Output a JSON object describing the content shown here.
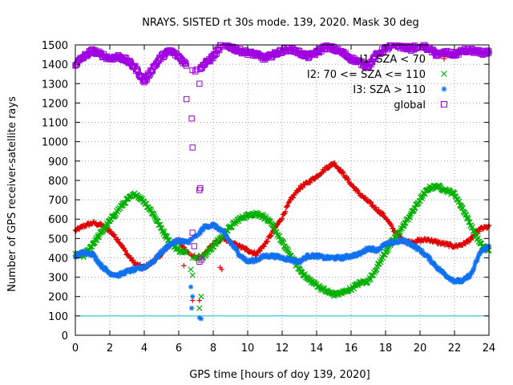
{
  "chart_data": {
    "type": "scatter",
    "title": "NRAYS. SISTED rt 30s mode. 139, 2020. Mask 30 deg",
    "xlabel": "GPS time [hours of doy 139, 2020]",
    "ylabel": "Number of GPS receiver-satellite rays",
    "xlim": [
      0,
      24
    ],
    "ylim": [
      0,
      1500
    ],
    "xticks": [
      "0",
      "2",
      "4",
      "6",
      "8",
      "10",
      "12",
      "14",
      "16",
      "18",
      "20",
      "22",
      "24"
    ],
    "yticks": [
      "0",
      "100",
      "200",
      "300",
      "400",
      "500",
      "600",
      "700",
      "800",
      "900",
      "1000",
      "1100",
      "1200",
      "1300",
      "1400",
      "1500"
    ],
    "grid": true,
    "legend_position": "top-right",
    "reference_line": {
      "y": 100,
      "color": "#00c0d0"
    },
    "series": [
      {
        "name": "I1: SZA < 70",
        "legend_label": "I1: SZA < 70",
        "marker": "+",
        "color": "#e00000",
        "x": [
          0,
          0.5,
          1,
          1.5,
          2,
          2.5,
          3,
          3.5,
          4,
          4.5,
          5,
          5.5,
          6,
          6.5,
          7,
          7.5,
          8,
          8.5,
          9,
          9.5,
          10,
          10.5,
          11,
          11.5,
          12,
          12.5,
          13,
          13.5,
          14,
          14.5,
          15,
          15.5,
          16,
          16.5,
          17,
          17.5,
          18,
          18.5,
          19,
          19.5,
          20,
          20.5,
          21,
          21.5,
          22,
          22.5,
          23,
          23.5,
          24
        ],
        "y": [
          540,
          565,
          580,
          570,
          540,
          490,
          420,
          365,
          350,
          380,
          420,
          470,
          490,
          430,
          400,
          420,
          470,
          500,
          480,
          460,
          440,
          420,
          470,
          540,
          610,
          700,
          760,
          790,
          820,
          860,
          890,
          840,
          780,
          730,
          690,
          650,
          610,
          540,
          490,
          480,
          490,
          495,
          480,
          470,
          460,
          470,
          500,
          550,
          560
        ]
      },
      {
        "name": "I2: 70 <= SZA <= 110",
        "legend_label": "I2: 70 <= SZA <= 110",
        "marker": "x",
        "color": "#00b000",
        "x": [
          0,
          0.5,
          1,
          1.5,
          2,
          2.5,
          3,
          3.5,
          4,
          4.5,
          5,
          5.5,
          6,
          6.5,
          7,
          7.5,
          8,
          8.5,
          9,
          9.5,
          10,
          10.5,
          11,
          11.5,
          12,
          12.5,
          13,
          13.5,
          14,
          14.5,
          15,
          15.5,
          16,
          16.5,
          17,
          17.5,
          18,
          18.5,
          19,
          19.5,
          20,
          20.5,
          21,
          21.5,
          22,
          22.5,
          23,
          23.5,
          24
        ],
        "y": [
          420,
          410,
          470,
          530,
          590,
          650,
          700,
          730,
          690,
          630,
          550,
          480,
          440,
          420,
          400,
          410,
          460,
          510,
          560,
          600,
          620,
          630,
          610,
          560,
          480,
          410,
          340,
          290,
          260,
          230,
          210,
          220,
          240,
          270,
          280,
          350,
          430,
          500,
          560,
          630,
          700,
          760,
          770,
          750,
          730,
          650,
          560,
          470,
          440
        ]
      },
      {
        "name": "I3: SZA > 110",
        "legend_label": "I3: SZA > 110",
        "marker": "*",
        "color": "#1070f0",
        "x": [
          0,
          0.5,
          1,
          1.5,
          2,
          2.5,
          3,
          3.5,
          4,
          4.5,
          5,
          5.5,
          6,
          6.5,
          7,
          7.5,
          8,
          8.5,
          9,
          9.5,
          10,
          10.5,
          11,
          11.5,
          12,
          12.5,
          13,
          13.5,
          14,
          14.5,
          15,
          15.5,
          16,
          16.5,
          17,
          17.5,
          18,
          18.5,
          19,
          19.5,
          20,
          20.5,
          21,
          21.5,
          22,
          22.5,
          23,
          23.5,
          24
        ],
        "y": [
          410,
          430,
          420,
          360,
          320,
          310,
          330,
          340,
          350,
          380,
          430,
          470,
          490,
          480,
          510,
          560,
          570,
          540,
          480,
          420,
          380,
          390,
          410,
          410,
          400,
          390,
          380,
          410,
          410,
          400,
          400,
          400,
          410,
          420,
          450,
          440,
          470,
          480,
          490,
          470,
          440,
          400,
          350,
          310,
          280,
          280,
          320,
          430,
          460
        ]
      },
      {
        "name": "global",
        "legend_label": "global",
        "marker": "square",
        "color": "#a000e0",
        "x": [
          0,
          0.5,
          1,
          1.5,
          2,
          2.5,
          3,
          3.5,
          4,
          4.5,
          5,
          5.5,
          6,
          6.5,
          7,
          7.5,
          8,
          8.5,
          9,
          9.5,
          10,
          10.5,
          11,
          11.5,
          12,
          12.5,
          13,
          13.5,
          14,
          14.5,
          15,
          15.5,
          16,
          16.5,
          17,
          17.5,
          18,
          18.5,
          19,
          19.5,
          20,
          20.5,
          21,
          21.5,
          22,
          22.5,
          23,
          23.5,
          24
        ],
        "y": [
          1400,
          1440,
          1470,
          1450,
          1430,
          1440,
          1420,
          1380,
          1310,
          1380,
          1440,
          1470,
          1440,
          1390,
          1370,
          1400,
          1440,
          1500,
          1490,
          1470,
          1460,
          1450,
          1430,
          1450,
          1470,
          1480,
          1460,
          1440,
          1460,
          1490,
          1480,
          1460,
          1430,
          1410,
          1390,
          1450,
          1480,
          1500,
          1490,
          1480,
          1500,
          1480,
          1450,
          1460,
          1450,
          1470,
          1470,
          1460,
          1460
        ]
      }
    ],
    "outliers": [
      {
        "series": "global",
        "x": [
          6.45,
          6.75,
          6.8,
          7.2,
          7.25,
          7.2
        ],
        "y": [
          1220,
          1120,
          970,
          1300,
          760,
          750
        ]
      },
      {
        "series": "global",
        "x": [
          6.8,
          6.9,
          7.2,
          7.3
        ],
        "y": [
          530,
          460,
          380,
          390
        ]
      },
      {
        "series": "I1: SZA < 70",
        "x": [
          6.3,
          6.8,
          7.2,
          8.4,
          8.5
        ],
        "y": [
          360,
          180,
          180,
          350,
          340
        ]
      },
      {
        "series": "I2: 70 <= SZA <= 110",
        "x": [
          6.7,
          6.8,
          7.3,
          7.2
        ],
        "y": [
          340,
          310,
          200,
          140
        ]
      },
      {
        "series": "I3: SZA > 110",
        "x": [
          6.7,
          6.8,
          6.75,
          7.2,
          7.3
        ],
        "y": [
          250,
          200,
          140,
          90,
          85
        ]
      }
    ]
  }
}
